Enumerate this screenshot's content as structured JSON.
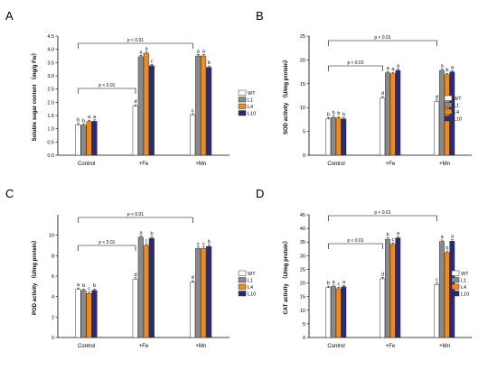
{
  "colors": {
    "WT": "#ffffff",
    "L1": "#8a8a8a",
    "L4": "#f0891f",
    "L10": "#2a2b6e",
    "stroke": "#333333",
    "letter_red": "#d02020"
  },
  "legend_entries": [
    "WT",
    "L1",
    "L4",
    "L10"
  ],
  "chart_data": [
    {
      "panel": "A",
      "type": "bar",
      "ylabel": "Soluble sugar content （mg/g Fw）",
      "ylim": [
        0,
        4.5
      ],
      "yticks": [
        "0.0",
        "0.5",
        "1.0",
        "1.5",
        "2.0",
        "2.5",
        "3.0",
        "3.5",
        "4.0",
        "4.5"
      ],
      "categories": [
        "Control",
        "+Fe",
        "+Mn"
      ],
      "series": [
        {
          "name": "WT",
          "values": [
            1.15,
            1.85,
            1.52
          ],
          "letters": [
            "b",
            "d",
            "c"
          ]
        },
        {
          "name": "L1",
          "values": [
            1.13,
            3.72,
            3.75
          ],
          "letters": [
            "b",
            "a",
            "a"
          ]
        },
        {
          "name": "L4",
          "values": [
            1.27,
            3.85,
            3.75
          ],
          "letters": [
            "a",
            "a",
            "a"
          ]
        },
        {
          "name": "L10",
          "values": [
            1.28,
            3.38,
            3.32
          ],
          "letters": [
            "a",
            "c",
            "b"
          ]
        }
      ],
      "brackets": [
        {
          "label": "p < 0.01",
          "from": "Control",
          "to": "+Fe"
        },
        {
          "label": "p < 0.01",
          "from": "Control",
          "to": "+Mn"
        }
      ]
    },
    {
      "panel": "B",
      "type": "bar",
      "ylabel": "SOD activity （U/mg protein）",
      "ylim": [
        0,
        25
      ],
      "yticks": [
        "0",
        "5",
        "10",
        "15",
        "20",
        "25"
      ],
      "categories": [
        "Control",
        "+Fe",
        "+Mn"
      ],
      "series": [
        {
          "name": "WT",
          "values": [
            7.6,
            12.0,
            11.3
          ],
          "letters": [
            "b",
            "d",
            "d"
          ]
        },
        {
          "name": "L1",
          "values": [
            7.9,
            17.3,
            17.8
          ],
          "letters": [
            "b",
            "a",
            "a"
          ]
        },
        {
          "name": "L4",
          "values": [
            7.8,
            17.1,
            16.9
          ],
          "letters": [
            "b",
            "a",
            "b"
          ]
        },
        {
          "name": "L10",
          "values": [
            7.6,
            17.8,
            17.5
          ],
          "letters": [
            "b",
            "a",
            "a"
          ]
        }
      ],
      "brackets": [
        {
          "label": "p < 0.01",
          "from": "Control",
          "to": "+Fe"
        },
        {
          "label": "p < 0.01",
          "from": "Control",
          "to": "+Mn"
        }
      ]
    },
    {
      "panel": "C",
      "type": "bar",
      "ylabel": "POD activity （U/mg protein）",
      "ylim": [
        0,
        12
      ],
      "yticks": [
        "0",
        "2",
        "4",
        "6",
        "8",
        "10"
      ],
      "categories": [
        "Control",
        "+Fe",
        "+Mn"
      ],
      "series": [
        {
          "name": "WT",
          "values": [
            4.7,
            5.7,
            5.4
          ],
          "letters": [
            "a",
            "d",
            "d"
          ]
        },
        {
          "name": "L1",
          "values": [
            4.6,
            9.8,
            8.7
          ],
          "letters": [
            "b",
            "a",
            "c"
          ]
        },
        {
          "name": "L4",
          "values": [
            4.3,
            9.0,
            8.7
          ],
          "letters": [
            "c",
            "c",
            "c"
          ]
        },
        {
          "name": "L10",
          "values": [
            4.6,
            9.7,
            8.9
          ],
          "letters": [
            "b",
            "b",
            "b"
          ]
        }
      ],
      "brackets": [
        {
          "label": "p < 0.01",
          "from": "Control",
          "to": "+Fe"
        },
        {
          "label": "p < 0.01",
          "from": "Control",
          "to": "+Mn"
        }
      ]
    },
    {
      "panel": "D",
      "type": "bar",
      "ylabel": "CAT activity （U/mg protein）",
      "ylim": [
        0,
        45
      ],
      "yticks": [
        "0",
        "5",
        "10",
        "15",
        "20",
        "25",
        "30",
        "35",
        "40",
        "45"
      ],
      "categories": [
        "Control",
        "+Fe",
        "+Mn"
      ],
      "series": [
        {
          "name": "WT",
          "values": [
            18.3,
            21.5,
            19.4
          ],
          "letters": [
            "b",
            "d",
            "c"
          ]
        },
        {
          "name": "L1",
          "values": [
            18.7,
            36.0,
            35.2
          ],
          "letters": [
            "a",
            "b",
            "a"
          ]
        },
        {
          "name": "L4",
          "values": [
            17.9,
            34.2,
            31.1
          ],
          "letters": [
            "c",
            "c",
            "b"
          ]
        },
        {
          "name": "L10",
          "values": [
            18.6,
            36.5,
            35.3
          ],
          "letters": [
            "a",
            "a",
            "a"
          ]
        }
      ],
      "brackets": [
        {
          "label": "p < 0.01",
          "from": "Control",
          "to": "+Fe"
        },
        {
          "label": "p < 0.01",
          "from": "Control",
          "to": "+Mn"
        }
      ]
    }
  ]
}
